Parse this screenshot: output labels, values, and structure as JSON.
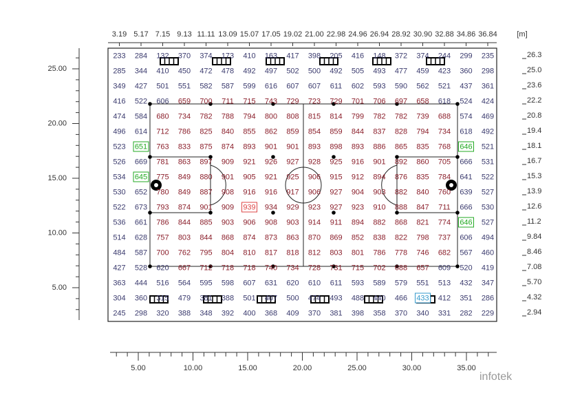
{
  "top_axis": {
    "labels": [
      "3.19",
      "5.17",
      "7.15",
      "9.13",
      "11.11",
      "13.09",
      "15.07",
      "17.05",
      "19.02",
      "21.00",
      "22.98",
      "24.96",
      "26.94",
      "28.92",
      "30.90",
      "32.88",
      "34.86",
      "36.84"
    ],
    "unit": "[m]"
  },
  "right_axis": {
    "labels": [
      "26.3",
      "25.0",
      "23.6",
      "22.2",
      "20.8",
      "19.4",
      "18.1",
      "16.7",
      "15.3",
      "13.9",
      "12.6",
      "11.2",
      "9.84",
      "8.46",
      "7.08",
      "5.70",
      "4.32",
      "2.94"
    ]
  },
  "left_axis": {
    "labels": [
      "25.00",
      "20.00",
      "15.00",
      "10.00",
      "5.00"
    ]
  },
  "bottom_axis": {
    "labels": [
      "5.00",
      "10.00",
      "15.00",
      "20.00",
      "25.00",
      "30.00",
      "35.00"
    ]
  },
  "grid": {
    "rows": [
      [
        233,
        284,
        132,
        370,
        374,
        173,
        410,
        163,
        417,
        398,
        205,
        416,
        148,
        372,
        374,
        244,
        299,
        235
      ],
      [
        285,
        344,
        410,
        450,
        472,
        478,
        492,
        497,
        502,
        500,
        492,
        505,
        493,
        477,
        459,
        423,
        360,
        298
      ],
      [
        349,
        427,
        501,
        551,
        582,
        587,
        599,
        616,
        607,
        607,
        611,
        602,
        593,
        590,
        562,
        521,
        437,
        361
      ],
      [
        416,
        522,
        606,
        659,
        700,
        711,
        715,
        743,
        729,
        723,
        729,
        701,
        706,
        697,
        658,
        618,
        524,
        424
      ],
      [
        474,
        584,
        680,
        734,
        782,
        788,
        794,
        800,
        808,
        815,
        814,
        799,
        782,
        782,
        739,
        688,
        574,
        469
      ],
      [
        496,
        614,
        712,
        786,
        825,
        840,
        855,
        862,
        859,
        854,
        859,
        844,
        837,
        828,
        794,
        734,
        618,
        492
      ],
      [
        523,
        651,
        763,
        833,
        875,
        874,
        893,
        901,
        901,
        893,
        898,
        893,
        886,
        865,
        835,
        768,
        646,
        521
      ],
      [
        526,
        669,
        781,
        863,
        897,
        909,
        921,
        926,
        927,
        928,
        925,
        916,
        901,
        892,
        860,
        705,
        666,
        531
      ],
      [
        534,
        645,
        775,
        849,
        880,
        901,
        905,
        921,
        925,
        906,
        915,
        912,
        894,
        876,
        835,
        784,
        641,
        522
      ],
      [
        530,
        652,
        780,
        849,
        887,
        908,
        916,
        916,
        917,
        906,
        927,
        904,
        903,
        882,
        840,
        760,
        639,
        527
      ],
      [
        522,
        673,
        793,
        874,
        901,
        909,
        939,
        934,
        929,
        923,
        927,
        923,
        910,
        888,
        847,
        711,
        666,
        530
      ],
      [
        536,
        661,
        786,
        844,
        885,
        903,
        906,
        908,
        903,
        914,
        911,
        894,
        882,
        868,
        821,
        774,
        646,
        527
      ],
      [
        514,
        628,
        757,
        803,
        844,
        868,
        874,
        873,
        863,
        870,
        869,
        852,
        838,
        822,
        798,
        737,
        606,
        494
      ],
      [
        484,
        587,
        700,
        762,
        795,
        804,
        810,
        817,
        818,
        812,
        803,
        801,
        786,
        778,
        746,
        682,
        567,
        460
      ],
      [
        427,
        528,
        620,
        667,
        712,
        718,
        718,
        740,
        734,
        728,
        731,
        715,
        702,
        688,
        657,
        609,
        520,
        419
      ],
      [
        363,
        444,
        516,
        564,
        595,
        598,
        607,
        631,
        620,
        610,
        611,
        593,
        589,
        579,
        551,
        513,
        432,
        347
      ],
      [
        304,
        360,
        315,
        479,
        381,
        388,
        501,
        407,
        500,
        474,
        493,
        488,
        440,
        466,
        433,
        412,
        351,
        286
      ],
      [
        245,
        298,
        320,
        388,
        348,
        392,
        400,
        368,
        409,
        370,
        381,
        398,
        358,
        370,
        340,
        331,
        282,
        229
      ]
    ]
  },
  "watermark": "infotek"
}
